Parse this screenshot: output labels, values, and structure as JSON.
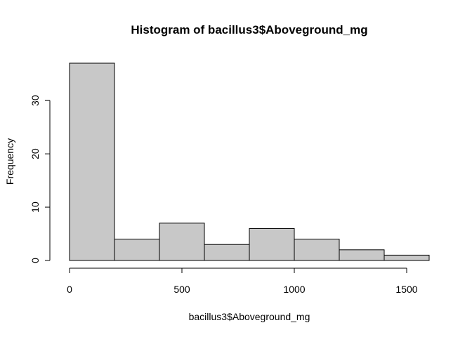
{
  "chart_data": {
    "type": "bar",
    "title": "Histogram of bacillus3$Aboveground_mg",
    "xlabel": "bacillus3$Aboveground_mg",
    "ylabel": "Frequency",
    "bins": [
      {
        "start": 0,
        "end": 200,
        "count": 37
      },
      {
        "start": 200,
        "end": 400,
        "count": 4
      },
      {
        "start": 400,
        "end": 600,
        "count": 7
      },
      {
        "start": 600,
        "end": 800,
        "count": 3
      },
      {
        "start": 800,
        "end": 1000,
        "count": 6
      },
      {
        "start": 1000,
        "end": 1200,
        "count": 4
      },
      {
        "start": 1200,
        "end": 1400,
        "count": 2
      },
      {
        "start": 1400,
        "end": 1600,
        "count": 1
      }
    ],
    "xticks": [
      0,
      500,
      1000,
      1500
    ],
    "yticks": [
      0,
      10,
      20,
      30
    ],
    "xlim": [
      0,
      1600
    ],
    "ylim": [
      0,
      37
    ],
    "bar_fill": "#c8c8c8",
    "bar_stroke": "#000000",
    "grid": false
  }
}
